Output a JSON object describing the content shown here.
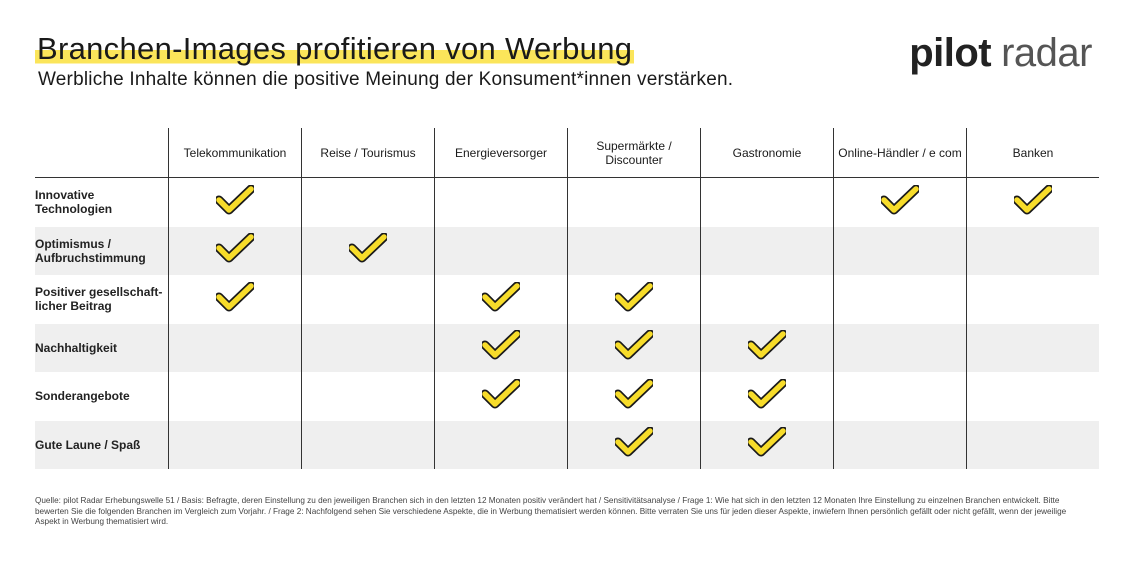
{
  "header": {
    "title": "Branchen-Images profitieren von Werbung",
    "subtitle": "Werbliche Inhalte können die positive Meinung der Konsument*innen verstärken."
  },
  "brand": {
    "word1": "pilot",
    "word2": "radar"
  },
  "table": {
    "columns": [
      "Telekommunikation",
      "Reise / Tourismus",
      "Energieversorger",
      "Supermärkte / Discounter",
      "Gastronomie",
      "Online-Händler / e com",
      "Banken"
    ],
    "rows": [
      {
        "label": "Innovative Technologien",
        "checks": [
          true,
          false,
          false,
          false,
          false,
          true,
          true
        ]
      },
      {
        "label": "Optimismus / Aufbruchstimmung",
        "checks": [
          true,
          true,
          false,
          false,
          false,
          false,
          false
        ]
      },
      {
        "label": "Positiver gesellschaft-licher Beitrag",
        "checks": [
          true,
          false,
          true,
          true,
          false,
          false,
          false
        ]
      },
      {
        "label": "Nachhaltigkeit",
        "checks": [
          false,
          false,
          true,
          true,
          true,
          false,
          false
        ]
      },
      {
        "label": "Sonderangebote",
        "checks": [
          false,
          false,
          true,
          true,
          true,
          false,
          false
        ]
      },
      {
        "label": "Gute Laune / Spaß",
        "checks": [
          false,
          false,
          false,
          true,
          true,
          false,
          false
        ]
      }
    ]
  },
  "icons": {
    "check": "checkmark-icon"
  },
  "colors": {
    "accent": "#fbe55a",
    "check_fill": "#f7dc2a",
    "check_outline": "#1a1a1a",
    "row_shade": "#efefef"
  },
  "footer": {
    "source": "Quelle: pilot Radar Erhebungswelle 51 / Basis: Befragte, deren Einstellung zu den jeweiligen Branchen sich in den letzten 12 Monaten positiv verändert hat / Sensitivitätsanalyse / Frage 1: Wie hat sich in den letzten 12 Monaten Ihre Einstellung zu einzelnen Branchen entwickelt. Bitte bewerten Sie die folgenden Branchen im Vergleich zum Vorjahr. / Frage 2: Nachfolgend sehen Sie verschiedene Aspekte, die in Werbung thematisiert werden können. Bitte verraten Sie uns für jeden dieser Aspekte, inwiefern Ihnen persönlich gefällt oder nicht gefällt, wenn der jeweilige Aspekt in Werbung thematisiert wird."
  }
}
